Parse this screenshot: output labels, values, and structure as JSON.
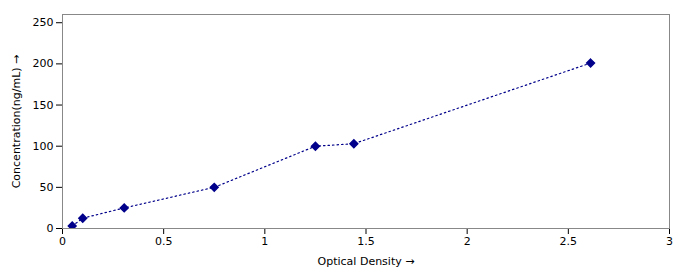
{
  "chart_data": {
    "type": "line",
    "x": [
      0.048,
      0.1,
      0.305,
      0.75,
      1.25,
      1.44,
      2.61
    ],
    "values": [
      3.1,
      12.5,
      25.0,
      50.0,
      100.0,
      103.0,
      201.0
    ],
    "color": "#00008B",
    "marker": "diamond",
    "line_style": "dotted",
    "xlabel": "Optical Density",
    "ylabel": "Concentration(ng/mL)",
    "xlim": [
      0,
      3
    ],
    "ylim": [
      0,
      260
    ],
    "xticks": [
      0,
      0.5,
      1,
      1.5,
      2,
      2.5,
      3
    ],
    "yticks": [
      0,
      50,
      100,
      150,
      200,
      250
    ]
  }
}
